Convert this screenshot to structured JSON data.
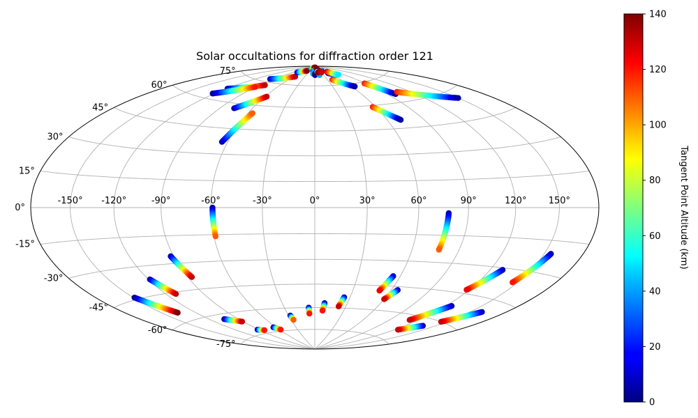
{
  "chart_data": {
    "type": "scatter",
    "projection": "hammer",
    "title": "Solar occultations for diffraction order 121",
    "x_ticks": [
      "-150°",
      "-120°",
      "-90°",
      "-60°",
      "-30°",
      "0°",
      "30°",
      "60°",
      "90°",
      "120°",
      "150°"
    ],
    "x_tick_values": [
      -150,
      -120,
      -90,
      -60,
      -30,
      0,
      30,
      60,
      90,
      120,
      150
    ],
    "y_ticks": [
      "75°",
      "60°",
      "45°",
      "30°",
      "15°",
      "0°",
      "-15°",
      "-30°",
      "-45°",
      "-60°",
      "-75°"
    ],
    "y_tick_values": [
      75,
      60,
      45,
      30,
      15,
      0,
      -15,
      -30,
      -45,
      -60,
      -75
    ],
    "xlim": [
      -180,
      180
    ],
    "ylim": [
      -90,
      90
    ],
    "grid": true,
    "colorbar": {
      "label": "Tangent Point Altitude (km)",
      "range": [
        0,
        140
      ],
      "ticks": [
        "0",
        "20",
        "40",
        "60",
        "80",
        "100",
        "120",
        "140"
      ],
      "tick_values": [
        0,
        20,
        40,
        60,
        80,
        100,
        120,
        140
      ],
      "colormap": "jet"
    },
    "tracks": [
      {
        "start": [
          -149,
          -44
        ],
        "end": [
          -136,
          -55
        ],
        "alt_start": 0,
        "alt_end": 140
      },
      {
        "start": [
          -119,
          -37
        ],
        "end": [
          -112,
          -46
        ],
        "alt_start": 5,
        "alt_end": 130
      },
      {
        "start": [
          -92,
          -26
        ],
        "end": [
          -87,
          -38
        ],
        "alt_start": 5,
        "alt_end": 130
      },
      {
        "start": [
          -59,
          0
        ],
        "end": [
          -59,
          -16
        ],
        "alt_start": 5,
        "alt_end": 110
      },
      {
        "start": [
          -105,
          -63
        ],
        "end": [
          -91,
          -66
        ],
        "alt_start": 5,
        "alt_end": 130
      },
      {
        "start": [
          -92,
          -72
        ],
        "end": [
          -84,
          -73
        ],
        "alt_start": 5,
        "alt_end": 120
      },
      {
        "start": [
          -64,
          -72
        ],
        "end": [
          -58,
          -74
        ],
        "alt_start": 5,
        "alt_end": 120
      },
      {
        "start": [
          -28,
          -65
        ],
        "end": [
          -27,
          -68
        ],
        "alt_start": 5,
        "alt_end": 110
      },
      {
        "start": [
          -6,
          -60
        ],
        "end": [
          -6,
          -64
        ],
        "alt_start": 5,
        "alt_end": 120
      },
      {
        "start": [
          9,
          -57
        ],
        "end": [
          8,
          -62
        ],
        "alt_start": 5,
        "alt_end": 120
      },
      {
        "start": [
          25,
          -53
        ],
        "end": [
          23,
          -59
        ],
        "alt_start": 5,
        "alt_end": 130
      },
      {
        "start": [
          55,
          -39
        ],
        "end": [
          51,
          -48
        ],
        "alt_start": 5,
        "alt_end": 125
      },
      {
        "start": [
          65,
          -47
        ],
        "end": [
          60,
          -53
        ],
        "alt_start": 5,
        "alt_end": 130
      },
      {
        "start": [
          78,
          -3
        ],
        "end": [
          77,
          -23
        ],
        "alt_start": 5,
        "alt_end": 110
      },
      {
        "start": [
          125,
          -52
        ],
        "end": [
          111,
          -63
        ],
        "alt_start": 5,
        "alt_end": 130
      },
      {
        "start": [
          138,
          -64
        ],
        "end": [
          124,
          -69
        ],
        "alt_start": 5,
        "alt_end": 130
      },
      {
        "start": [
          129,
          -31
        ],
        "end": [
          118,
          -43
        ],
        "alt_start": 5,
        "alt_end": 125
      },
      {
        "start": [
          155,
          -21
        ],
        "end": [
          146,
          -36
        ],
        "alt_start": 5,
        "alt_end": 120
      },
      {
        "start": [
          160,
          -51
        ],
        "end": [
          145,
          -60
        ],
        "alt_start": 5,
        "alt_end": 130
      },
      {
        "start": [
          -64,
          37
        ],
        "end": [
          -56,
          55
        ],
        "alt_start": 5,
        "alt_end": 110
      },
      {
        "start": [
          -77,
          57
        ],
        "end": [
          -58,
          66
        ],
        "alt_start": 5,
        "alt_end": 130
      },
      {
        "start": [
          -119,
          67
        ],
        "end": [
          -83,
          73
        ],
        "alt_start": 5,
        "alt_end": 130
      },
      {
        "start": [
          -122,
          63
        ],
        "end": [
          -91,
          71
        ],
        "alt_start": 0,
        "alt_end": 120
      },
      {
        "start": [
          -97,
          77
        ],
        "end": [
          -56,
          81
        ],
        "alt_start": 10,
        "alt_end": 130
      },
      {
        "start": [
          -76,
          84
        ],
        "end": [
          -48,
          86
        ],
        "alt_start": 10,
        "alt_end": 140
      },
      {
        "start": [
          -40,
          88
        ],
        "end": [
          -7,
          89
        ],
        "alt_start": 40,
        "alt_end": 140
      },
      {
        "start": [
          -10,
          86
        ],
        "end": [
          10,
          89
        ],
        "alt_start": 5,
        "alt_end": 140
      },
      {
        "start": [
          2,
          87
        ],
        "end": [
          25,
          88
        ],
        "alt_start": 30,
        "alt_end": 140
      },
      {
        "start": [
          42,
          86
        ],
        "end": [
          20,
          88
        ],
        "alt_start": 10,
        "alt_end": 140
      },
      {
        "start": [
          41,
          79
        ],
        "end": [
          65,
          73
        ],
        "alt_start": 120,
        "alt_end": 5
      },
      {
        "start": [
          55,
          84
        ],
        "end": [
          70,
          82
        ],
        "alt_start": 5,
        "alt_end": 40
      },
      {
        "start": [
          57,
          59
        ],
        "end": [
          71,
          50
        ],
        "alt_start": 120,
        "alt_end": 5
      },
      {
        "start": [
          88,
          74
        ],
        "end": [
          99,
          65
        ],
        "alt_start": 120,
        "alt_end": 5
      },
      {
        "start": [
          105,
          66
        ],
        "end": [
          150,
          56
        ],
        "alt_start": 120,
        "alt_end": 5
      },
      {
        "start": [
          61,
          85
        ],
        "end": [
          78,
          82
        ],
        "alt_start": 130,
        "alt_end": 50
      },
      {
        "start": [
          -6,
          85
        ],
        "end": [
          -7,
          84
        ],
        "alt_start": 40,
        "alt_end": 40
      },
      {
        "start": [
          1,
          84
        ],
        "end": [
          1,
          83
        ],
        "alt_start": 0,
        "alt_end": 0
      },
      {
        "start": [
          17,
          84
        ],
        "end": [
          17,
          83
        ],
        "alt_start": 40,
        "alt_end": 40
      },
      {
        "start": [
          12,
          86
        ],
        "end": [
          15,
          85
        ],
        "alt_start": 10,
        "alt_end": 140
      },
      {
        "start": [
          30,
          86
        ],
        "end": [
          33,
          85
        ],
        "alt_start": 140,
        "alt_end": 130
      }
    ]
  }
}
